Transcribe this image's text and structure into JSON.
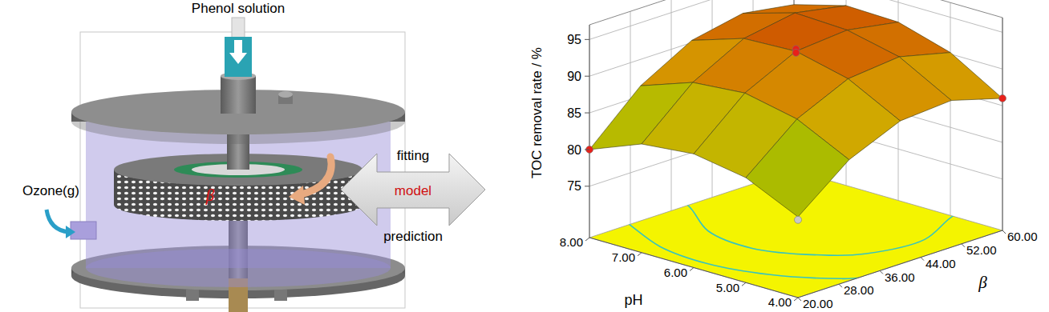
{
  "diagram": {
    "reactor": {
      "inlet": "Phenol solution",
      "gas_inlet": "Ozone(g)",
      "rotor": "β"
    },
    "link": {
      "upper": "fitting",
      "middle": "model",
      "lower": "prediction"
    }
  },
  "chart_data": {
    "type": "surface",
    "x_label": "pH",
    "y_label": "β",
    "z_label": "TOC removal rate / %",
    "xlim": [
      4,
      8
    ],
    "xticks": [
      {
        "value": 4,
        "label": "4.00"
      },
      {
        "value": 5,
        "label": "5.00"
      },
      {
        "value": 6,
        "label": "6.00"
      },
      {
        "value": 7,
        "label": "7.00"
      },
      {
        "value": 8,
        "label": "8.00"
      }
    ],
    "ylim": [
      20,
      60
    ],
    "yticks": [
      {
        "value": 20,
        "label": "20.00"
      },
      {
        "value": 28,
        "label": "28.00"
      },
      {
        "value": 36,
        "label": "36.00"
      },
      {
        "value": 44,
        "label": "44.00"
      },
      {
        "value": 52,
        "label": "52.00"
      },
      {
        "value": 60,
        "label": "60.00"
      }
    ],
    "zlim": [
      68,
      97
    ],
    "zticks": [
      75,
      80,
      85,
      90,
      95
    ],
    "grid": true,
    "x": [
      4,
      5,
      6,
      7,
      8
    ],
    "y": [
      20,
      30,
      40,
      50,
      60
    ],
    "z": [
      [
        79.0,
        84.5,
        87.5,
        88.0,
        86.0
      ],
      [
        82.3,
        88.0,
        91.2,
        91.9,
        90.2
      ],
      [
        83.5,
        89.5,
        92.9,
        93.5,
        92.3
      ],
      [
        82.8,
        88.9,
        92.6,
        93.8,
        92.5
      ],
      [
        80.0,
        86.4,
        90.3,
        91.7,
        90.6
      ]
    ],
    "contour_levels": [
      85,
      90
    ],
    "points": {
      "x": [
        8,
        4,
        6,
        6,
        4
      ],
      "y": [
        20,
        60,
        40,
        40,
        20
      ],
      "z": [
        80.0,
        86.0,
        93.2,
        92.7,
        78.6
      ],
      "colors": [
        "#e8211a",
        "#e8211a",
        "#e8211a",
        "#e8211a",
        "#c8c8c8"
      ]
    }
  }
}
